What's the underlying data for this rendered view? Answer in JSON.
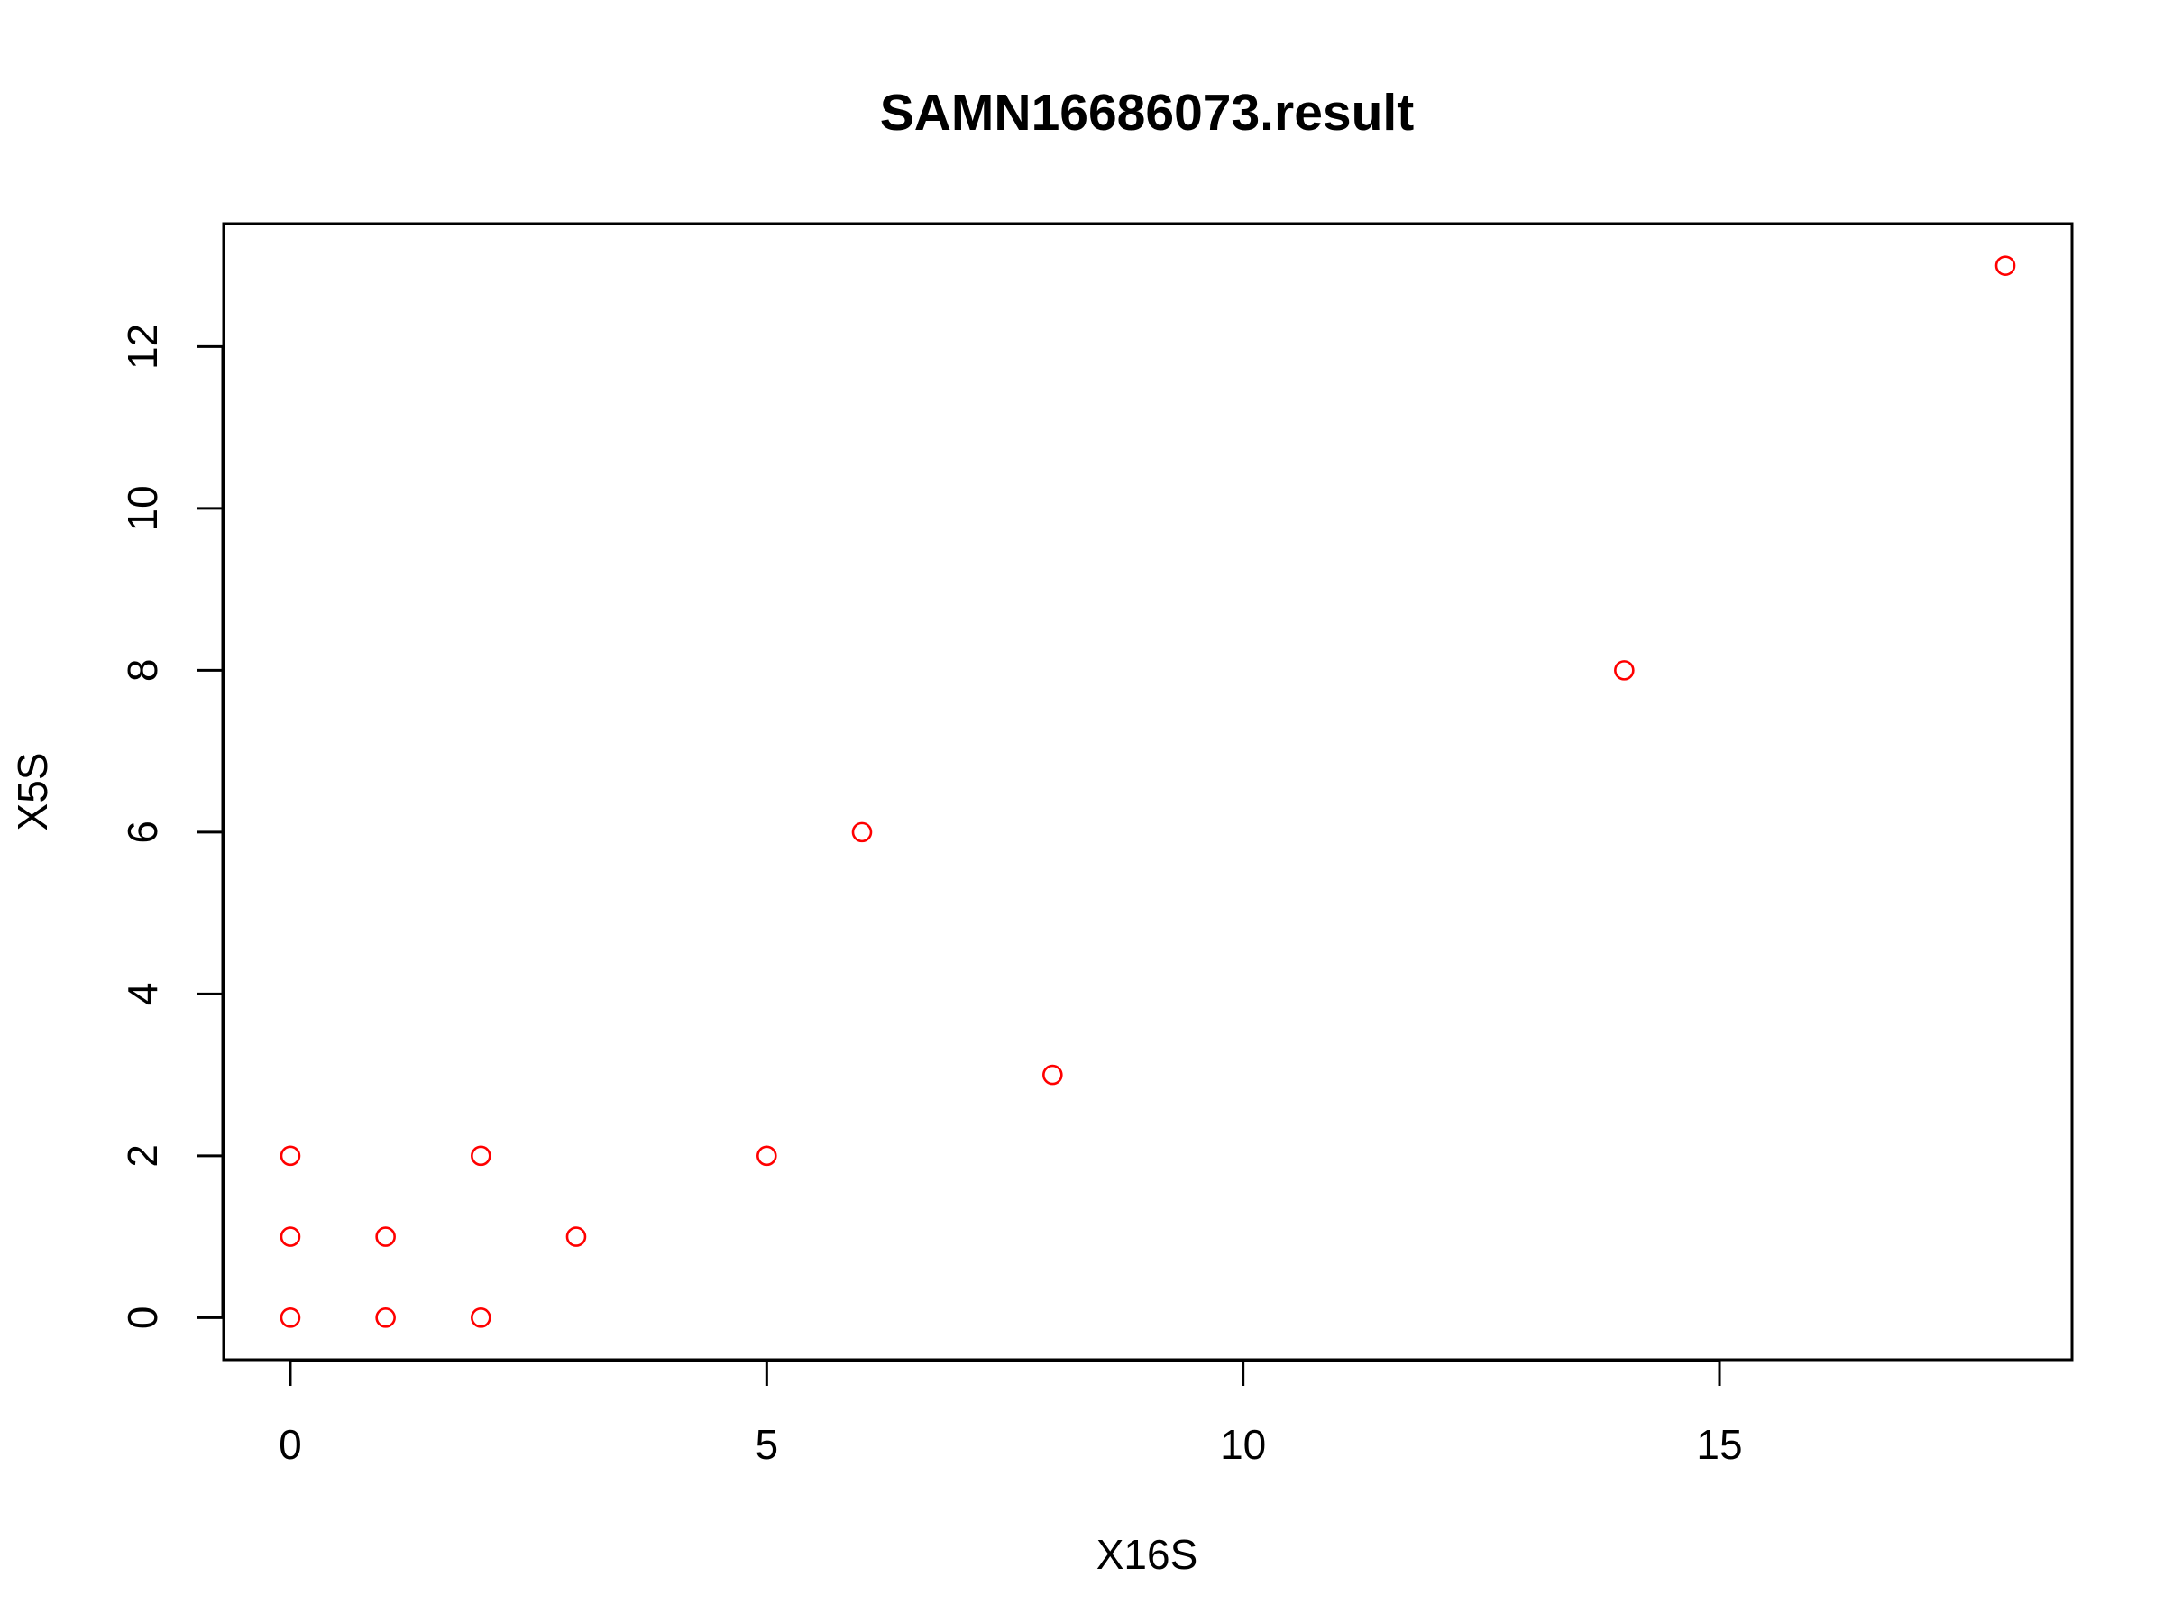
{
  "chart_data": {
    "type": "scatter",
    "title": "SAMN16686073.result",
    "xlabel": "X16S",
    "ylabel": "X5S",
    "xlim": [
      -0.7,
      18.7
    ],
    "ylim": [
      -0.52,
      13.52
    ],
    "xticks": [
      0,
      5,
      10,
      15
    ],
    "yticks": [
      0,
      2,
      4,
      6,
      8,
      10,
      12
    ],
    "point_color": "#ff0000",
    "marker": "open-circle",
    "grid": false,
    "legend": "none",
    "points": [
      {
        "x": 0,
        "y": 0
      },
      {
        "x": 0,
        "y": 1
      },
      {
        "x": 0,
        "y": 2
      },
      {
        "x": 1,
        "y": 0
      },
      {
        "x": 1,
        "y": 1
      },
      {
        "x": 2,
        "y": 0
      },
      {
        "x": 2,
        "y": 2
      },
      {
        "x": 3,
        "y": 1
      },
      {
        "x": 5,
        "y": 2
      },
      {
        "x": 6,
        "y": 6
      },
      {
        "x": 8,
        "y": 3
      },
      {
        "x": 14,
        "y": 8
      },
      {
        "x": 18,
        "y": 13
      }
    ]
  }
}
